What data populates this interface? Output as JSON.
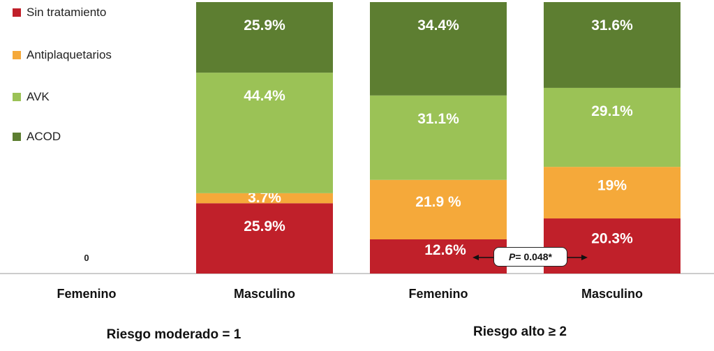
{
  "colors": {
    "sin_tratamiento": "#c0202a",
    "antiplaquetarios": "#f5a93a",
    "avk": "#9bc256",
    "acod": "#5d7e31"
  },
  "legend": [
    {
      "label": "Sin tratamiento",
      "color": "#c0202a"
    },
    {
      "label": "Antiplaquetarios",
      "color": "#f5a93a"
    },
    {
      "label": "AVK",
      "color": "#9bc256"
    },
    {
      "label": "ACOD",
      "color": "#5d7e31"
    }
  ],
  "groups": [
    {
      "label": "Riesgo moderado = 1"
    },
    {
      "label": "Riesgo alto ≥ 2"
    }
  ],
  "annotation": {
    "p_prefix": "P",
    "p_rest": " = 0.048*"
  },
  "chart_data": {
    "type": "bar",
    "stacked": true,
    "categories": [
      "Femenino",
      "Masculino",
      "Femenino",
      "Masculino"
    ],
    "series": [
      {
        "name": "Sin tratamiento",
        "values": [
          0,
          25.9,
          12.6,
          20.3
        ],
        "labels": [
          "0",
          "25.9%",
          "12.6%",
          "20.3%"
        ]
      },
      {
        "name": "Antiplaquetarios",
        "values": [
          0,
          3.7,
          21.9,
          19
        ],
        "labels": [
          "",
          "3.7%",
          "21.9 %",
          "19%"
        ]
      },
      {
        "name": "AVK",
        "values": [
          0,
          44.4,
          31.1,
          29.1
        ],
        "labels": [
          "",
          "44.4%",
          "31.1%",
          "29.1%"
        ]
      },
      {
        "name": "ACOD",
        "values": [
          0,
          25.9,
          34.4,
          31.6
        ],
        "labels": [
          "",
          "25.9%",
          "34.4%",
          "31.6%"
        ]
      }
    ],
    "ylim": [
      0,
      100
    ],
    "grid": false,
    "legend_position": "top-left"
  }
}
